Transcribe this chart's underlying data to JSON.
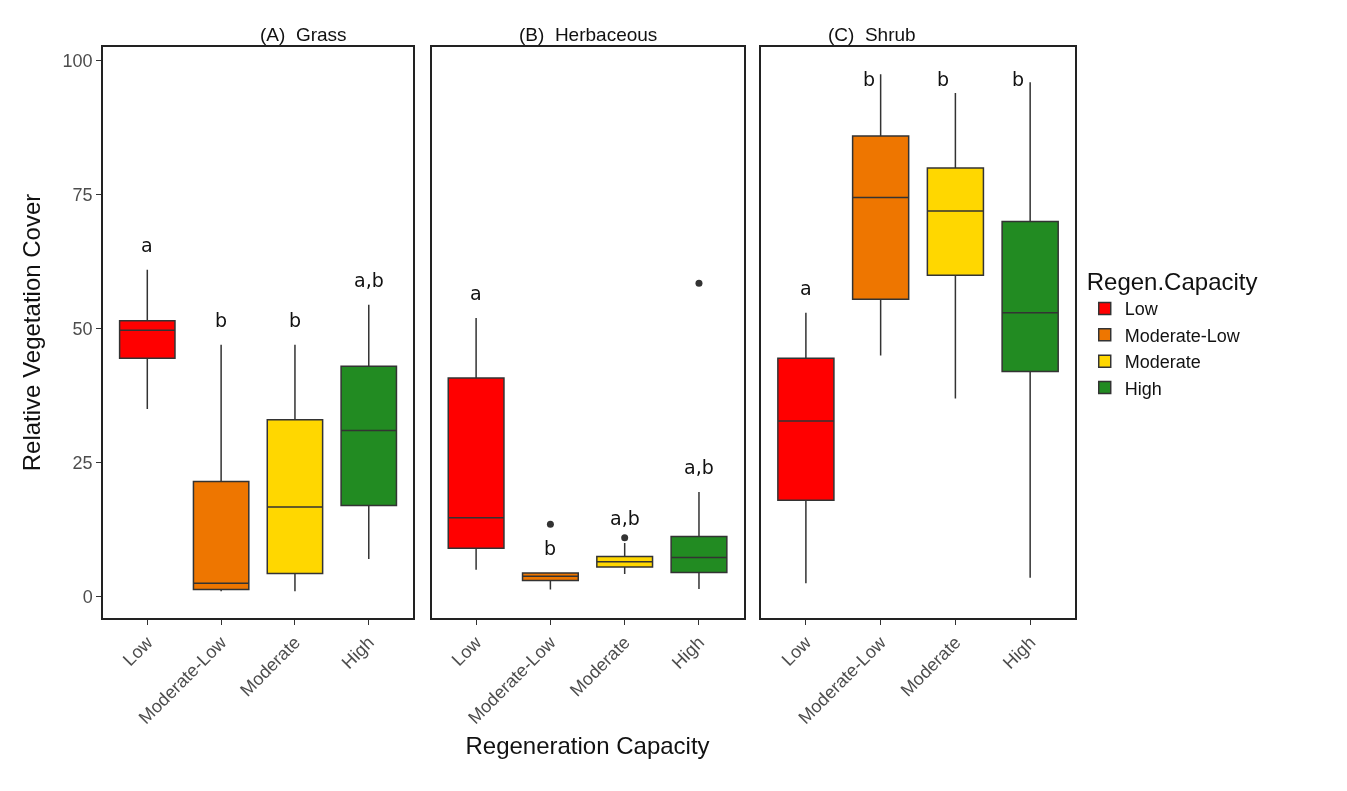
{
  "chart_data": [
    {
      "type": "box",
      "title": "(A)  Grass",
      "ylabel": "Relative Vegetation Cover",
      "categories": [
        "Low",
        "Moderate-Low",
        "Moderate",
        "High"
      ],
      "series": [
        {
          "color": "#ff0000",
          "boxes": [
            {
              "low": 35,
              "q1": 44.5,
              "median": 49.7,
              "q3": 51.5,
              "high": 61
            },
            null,
            null,
            null
          ]
        },
        {
          "color": "#ee7600",
          "boxes": [
            null,
            {
              "low": 1,
              "q1": 1.3,
              "median": 2.5,
              "q3": 21.5,
              "high": 47
            },
            null,
            null
          ]
        },
        {
          "color": "#ffd700",
          "boxes": [
            null,
            null,
            {
              "low": 1,
              "q1": 4.3,
              "median": 16.7,
              "q3": 33,
              "high": 47
            },
            null
          ]
        },
        {
          "color": "#228b22",
          "boxes": [
            null,
            null,
            null,
            {
              "low": 7,
              "q1": 17,
              "median": 31,
              "q3": 43,
              "high": 54.5
            }
          ]
        }
      ],
      "annotations": [
        "a",
        "b",
        "b",
        "a,b"
      ],
      "ylim": [
        -4,
        102.6
      ],
      "yticks": [
        0,
        25,
        50,
        75,
        100
      ]
    },
    {
      "type": "box",
      "title": "(B)  Herbaceous",
      "xlabel": "Regeneration Capacity",
      "categories": [
        "Low",
        "Moderate-Low",
        "Moderate",
        "High"
      ],
      "series": [
        {
          "color": "#ff0000",
          "boxes": [
            {
              "low": 5,
              "q1": 9,
              "median": 14.7,
              "q3": 40.8,
              "high": 52
            },
            null,
            null,
            null
          ]
        },
        {
          "color": "#ee7600",
          "boxes": [
            null,
            {
              "low": 1.3,
              "q1": 3,
              "median": 3.8,
              "q3": 4.4,
              "high": 4.4,
              "outliers": [
                13.5
              ]
            },
            null,
            null
          ]
        },
        {
          "color": "#ffd700",
          "boxes": [
            null,
            null,
            {
              "low": 4.2,
              "q1": 5.5,
              "median": 6.5,
              "q3": 7.5,
              "high": 10,
              "outliers": [
                11
              ]
            },
            null
          ]
        },
        {
          "color": "#228b22",
          "boxes": [
            null,
            null,
            null,
            {
              "low": 1.4,
              "q1": 4.5,
              "median": 7.3,
              "q3": 11.2,
              "high": 19.5,
              "outliers": [
                58.5
              ]
            }
          ]
        }
      ],
      "annotations": [
        "a",
        "b",
        "a,b",
        "a,b"
      ],
      "ylim": [
        -4,
        102.6
      ],
      "tick_labels": "x"
    },
    {
      "type": "box",
      "title": "(C)  Shrub",
      "legend_title": "Regen.Capacity",
      "legend": "right",
      "categories": [
        "Low",
        "Moderate-Low",
        "Moderate",
        "High"
      ],
      "series": [
        {
          "name": "Low",
          "color": "#ff0000",
          "boxes": [
            {
              "low": 2.5,
              "q1": 18,
              "median": 32.8,
              "q3": 44.5,
              "high": 53
            },
            null,
            null,
            null
          ]
        },
        {
          "name": "Moderate-Low",
          "color": "#ee7600",
          "boxes": [
            null,
            {
              "low": 45,
              "q1": 55.5,
              "median": 74.5,
              "q3": 86,
              "high": 97.5
            },
            null,
            null
          ]
        },
        {
          "name": "Moderate",
          "color": "#ffd700",
          "boxes": [
            null,
            null,
            {
              "low": 37,
              "q1": 60,
              "median": 72,
              "q3": 80,
              "high": 94
            },
            null
          ]
        },
        {
          "name": "High",
          "color": "#228b22",
          "boxes": [
            null,
            null,
            null,
            {
              "low": 3.5,
              "q1": 42,
              "median": 53,
              "q3": 70,
              "high": 96
            }
          ]
        }
      ],
      "annotations": [
        "a",
        "b",
        "b",
        "b"
      ],
      "ylim": [
        -4,
        102.6
      ],
      "tick_labels": "x"
    }
  ]
}
